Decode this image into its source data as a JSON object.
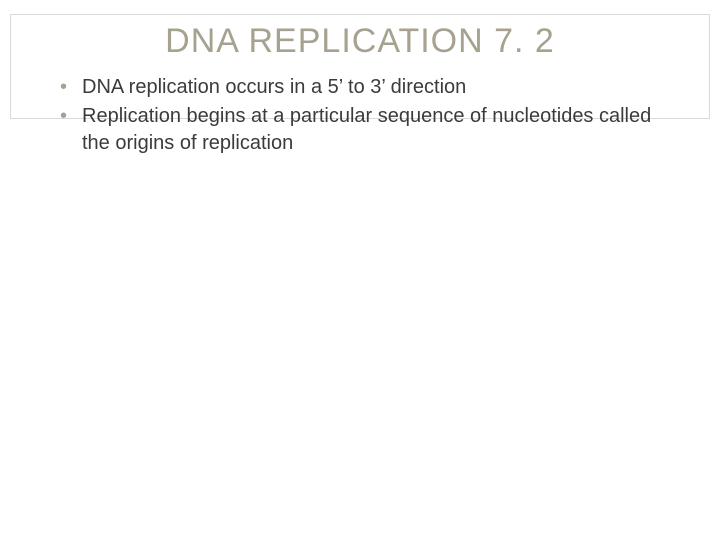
{
  "slide": {
    "title": "DNA REPLICATION 7. 2",
    "title_color": "#a6a28f",
    "title_fontsize": 34,
    "decor_border_color": "#d9d9d9",
    "background_color": "#ffffff",
    "bullet_marker_color": "#a6a28f",
    "body_text_color": "#3b3b3b",
    "body_fontsize": 20,
    "bullets": [
      "DNA replication occurs in a 5’ to 3’ direction",
      "Replication begins at a particular sequence of nucleotides called the origins of replication"
    ]
  }
}
